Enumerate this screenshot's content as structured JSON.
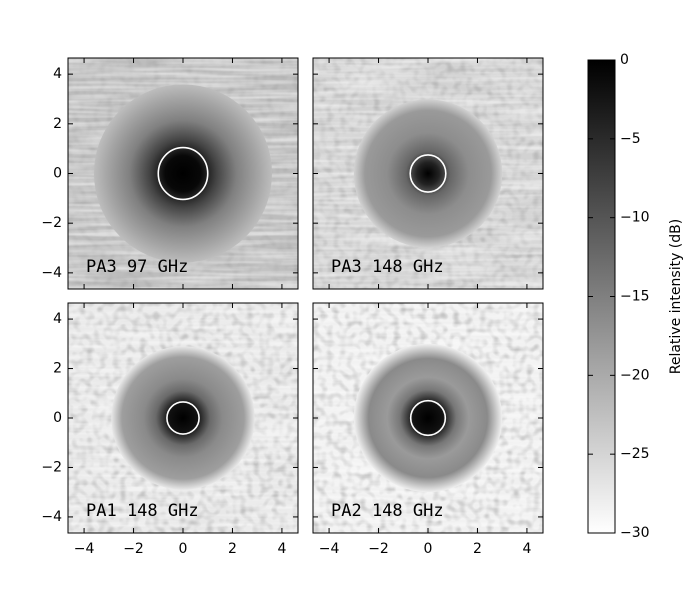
{
  "chart_data": [
    {
      "type": "heatmap",
      "label": "PA3  97 GHz",
      "xlim": [
        -4.65,
        4.65
      ],
      "ylim": [
        -4.65,
        4.65
      ],
      "xticks": [
        -4,
        -2,
        0,
        2,
        4
      ],
      "yticks": [
        {
          "value": -4,
          "label": "−4"
        },
        {
          "value": -2,
          "label": "−2"
        },
        0,
        2,
        4
      ]
    },
    {
      "type": "heatmap",
      "label": "PA3  148 GHz",
      "xlim": [
        -4.65,
        4.65
      ],
      "ylim": [
        -4.65,
        4.65
      ],
      "xticks": [
        -4,
        -2,
        0,
        2,
        4
      ],
      "yticks": [
        -4,
        -2,
        0,
        2,
        4
      ]
    },
    {
      "type": "heatmap",
      "label": "PA1  148 GHz",
      "xlim": [
        -4.65,
        4.65
      ],
      "ylim": [
        -4.65,
        4.65
      ],
      "xticks": [
        {
          "value": -4,
          "label": "−4"
        },
        {
          "value": -2,
          "label": "−2"
        },
        0,
        2,
        4
      ],
      "yticks": [
        {
          "value": -4,
          "label": "−4"
        },
        {
          "value": -2,
          "label": "−2"
        },
        0,
        2,
        4
      ]
    },
    {
      "type": "heatmap",
      "label": "PA2  148 GHz",
      "xlim": [
        -4.65,
        4.65
      ],
      "ylim": [
        -4.65,
        4.65
      ],
      "xticks": [
        {
          "value": -4,
          "label": "−4"
        },
        {
          "value": -2,
          "label": "−2"
        },
        0,
        2,
        4
      ],
      "yticks": [
        -4,
        -2,
        0,
        2,
        4
      ]
    },
    {
      "type": "colorbar",
      "label": "Relative intensity (dB)",
      "ylim": [
        -30,
        0
      ],
      "yticks": [
        0,
        {
          "value": -5,
          "label": "−5"
        },
        {
          "value": -10,
          "label": "−10"
        },
        {
          "value": -15,
          "label": "−15"
        },
        {
          "value": -20,
          "label": "−20"
        },
        {
          "value": -25,
          "label": "−25"
        },
        {
          "value": -30,
          "label": "−30"
        }
      ]
    }
  ]
}
